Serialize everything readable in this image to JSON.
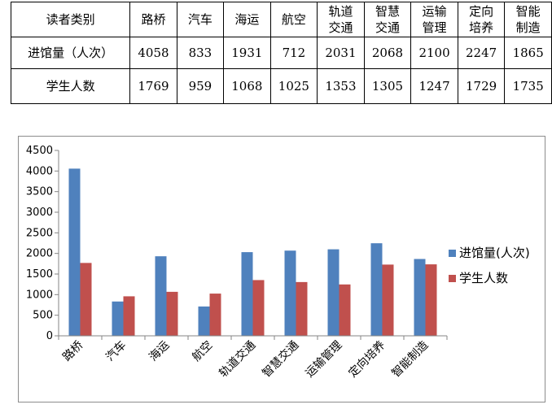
{
  "table": {
    "header_label": "读者类别",
    "columns": [
      "路桥",
      "汽车",
      "海运",
      "航空",
      "轨道|交通",
      "智慧|交通",
      "运输|管理",
      "定向|培养",
      "智能|制造"
    ],
    "rows": [
      {
        "label": "进馆量（人次）",
        "values": [
          "4058",
          "833",
          "1931",
          "712",
          "2031",
          "2068",
          "2100",
          "2247",
          "1865"
        ]
      },
      {
        "label": "学生人数",
        "values": [
          "1769",
          "959",
          "1068",
          "1025",
          "1353",
          "1305",
          "1247",
          "1729",
          "1735"
        ]
      }
    ]
  },
  "chart_data": {
    "type": "bar",
    "categories": [
      "路桥",
      "汽车",
      "海运",
      "航空",
      "轨道交通",
      "智慧交通",
      "运输管理",
      "定向培养",
      "智能制造"
    ],
    "series": [
      {
        "name": "进馆量(人次)",
        "values": [
          4058,
          833,
          1931,
          712,
          2031,
          2068,
          2100,
          2247,
          1865
        ],
        "color": "#4f81bd"
      },
      {
        "name": "学生人数",
        "values": [
          1769,
          959,
          1068,
          1025,
          1353,
          1305,
          1247,
          1729,
          1735
        ],
        "color": "#c0504d"
      }
    ],
    "title": "",
    "xlabel": "",
    "ylabel": "",
    "ylim": [
      0,
      4500
    ],
    "yticks": [
      0,
      500,
      1000,
      1500,
      2000,
      2500,
      3000,
      3500,
      4000,
      4500
    ],
    "grid": false,
    "legend": "right"
  }
}
